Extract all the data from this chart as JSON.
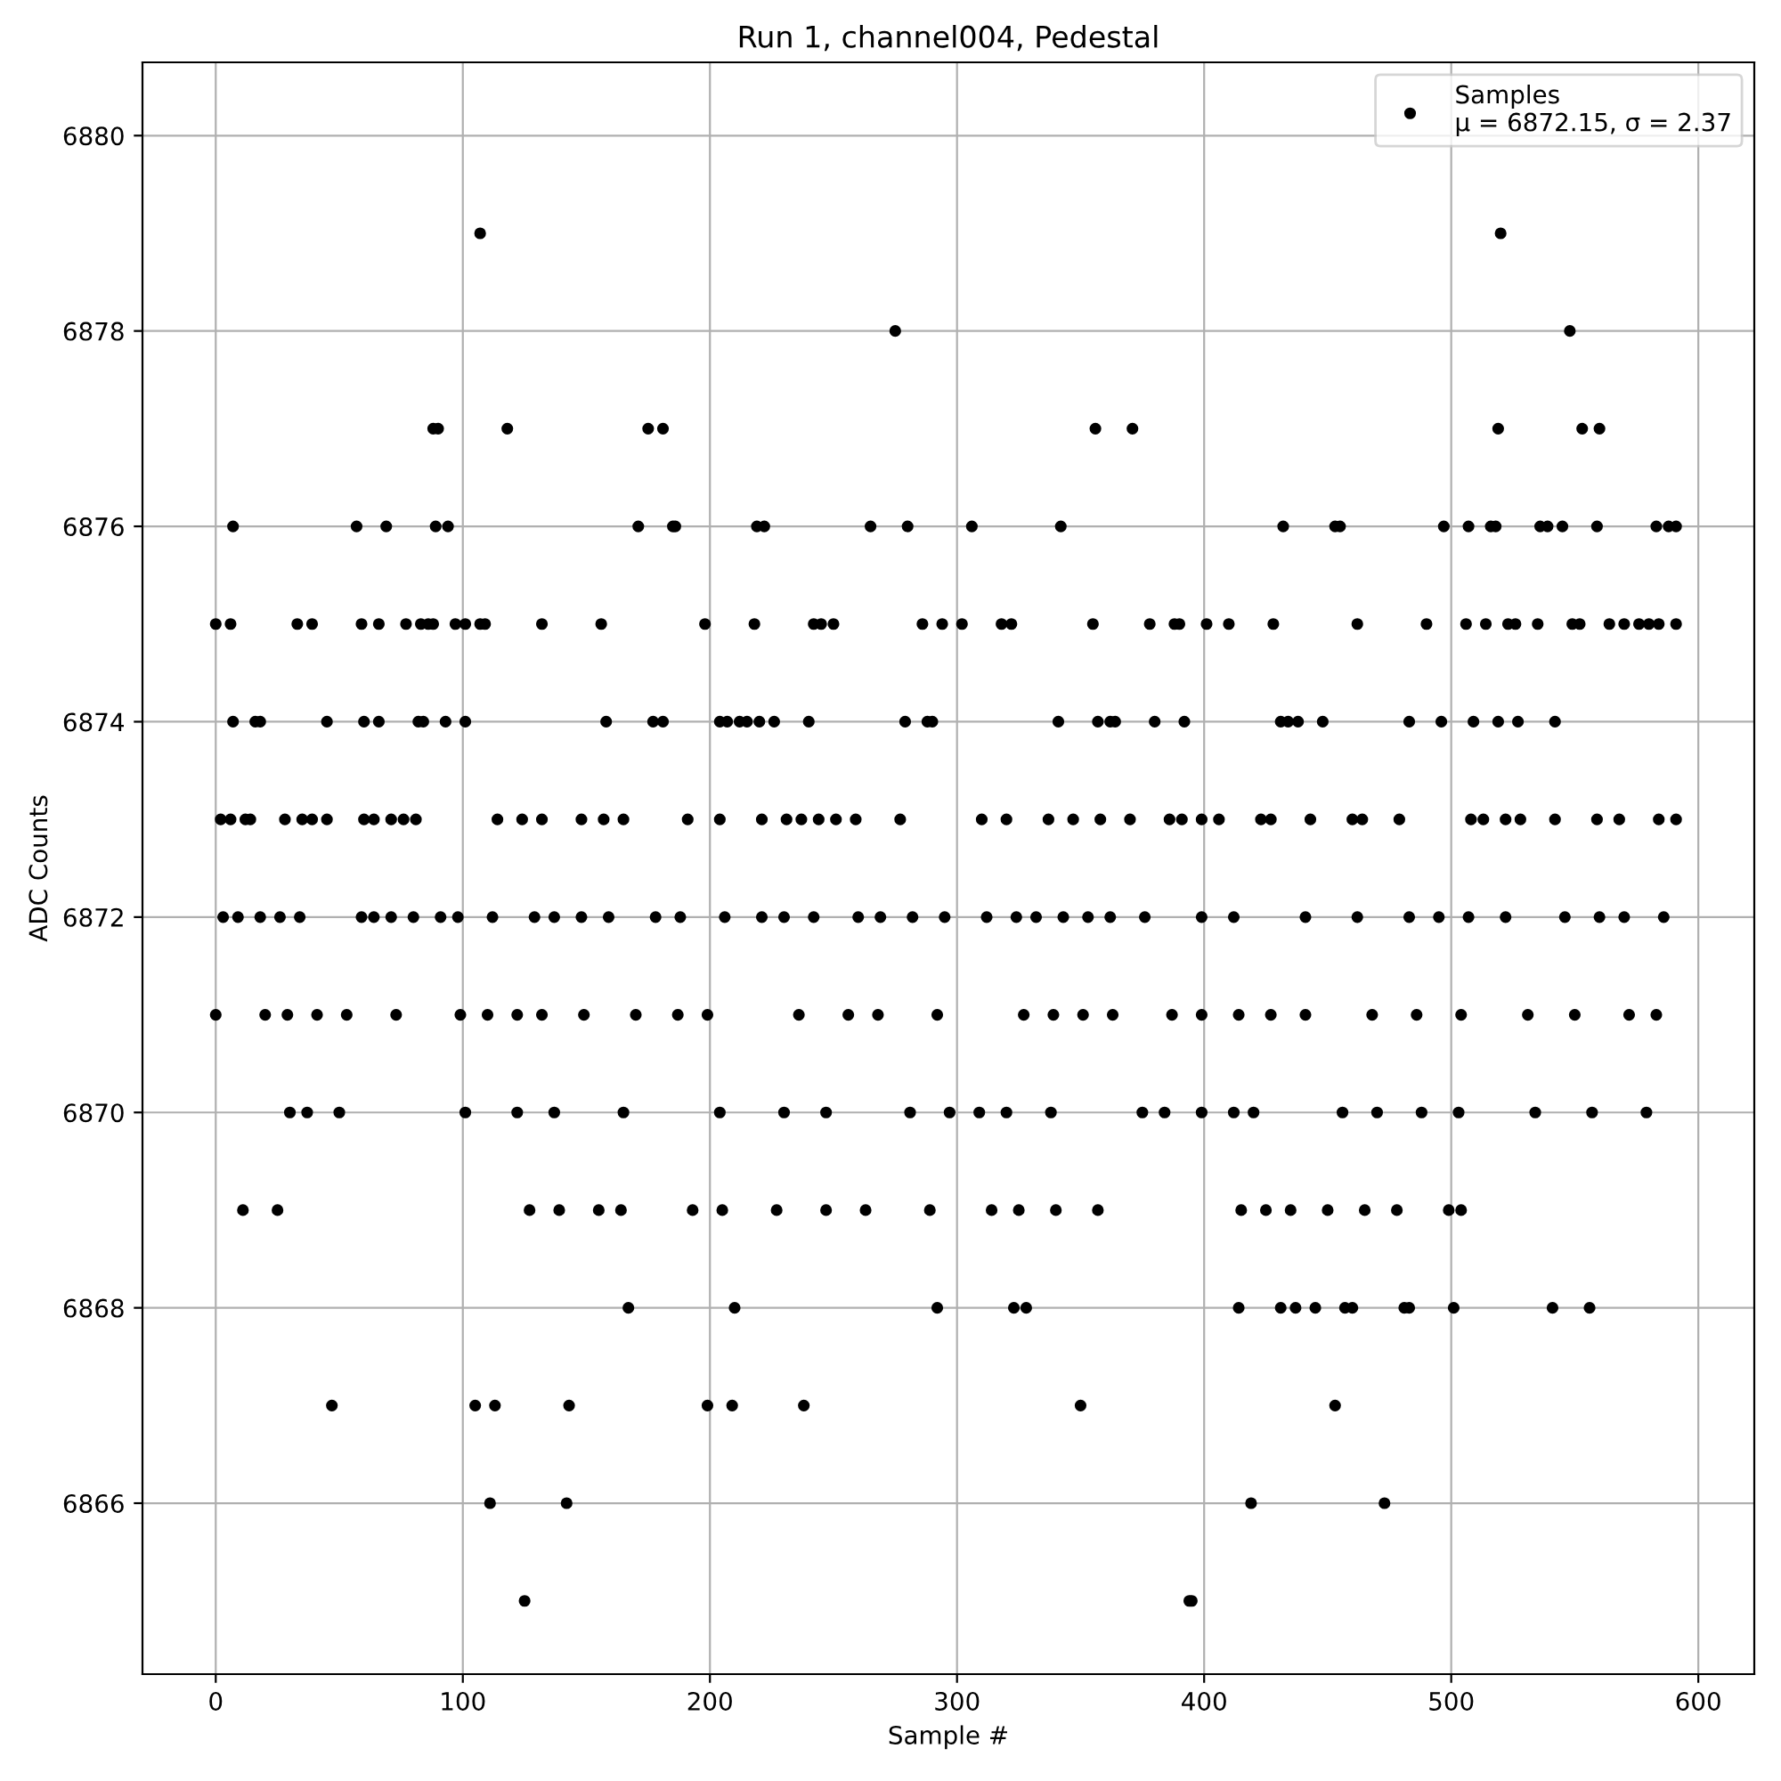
{
  "chart_data": {
    "type": "scatter",
    "title": "Run 1, channel004, Pedestal",
    "xlabel": "Sample #",
    "ylabel": "ADC Counts",
    "xlim": [
      -29.65,
      622.65
    ],
    "ylim": [
      6864.25,
      6880.75
    ],
    "xticks": [
      0,
      100,
      200,
      300,
      400,
      500,
      600
    ],
    "yticks": [
      6866,
      6868,
      6870,
      6872,
      6874,
      6876,
      6878,
      6880
    ],
    "grid": true,
    "legend": "top right",
    "marker": "circle",
    "series": [
      {
        "name": "Samples\nμ = 6872.15, σ = 2.37",
        "color": "#000000",
        "x": [
          107,
          520,
          275,
          548,
          88,
          90,
          118,
          175,
          181,
          356,
          371,
          519,
          553,
          560,
          111,
          142,
          419,
          473,
          125,
          394,
          395,
          47,
          105,
          113,
          143,
          199,
          209,
          238,
          350,
          453,
          167,
          210,
          292,
          323,
          328,
          414,
          431,
          437,
          445,
          457,
          460,
          481,
          483,
          501,
          541,
          556,
          7,
          57,
          69,
          89,
          94,
          171,
          185,
          186,
          219,
          222,
          265,
          280,
          306,
          342,
          432,
          453,
          455,
          497,
          507,
          516,
          518,
          536,
          539,
          545,
          559,
          583,
          588,
          591,
          0,
          6,
          33,
          39,
          59,
          66,
          77,
          83,
          86,
          88,
          97,
          101,
          107,
          109,
          132,
          156,
          198,
          218,
          242,
          245,
          250,
          286,
          294,
          302,
          318,
          322,
          355,
          378,
          388,
          390,
          401,
          410,
          428,
          462,
          490,
          506,
          514,
          523,
          526,
          535,
          549,
          552,
          564,
          570,
          576,
          580,
          584,
          591,
          7,
          16,
          18,
          45,
          60,
          66,
          82,
          84,
          93,
          101,
          158,
          177,
          181,
          204,
          207,
          212,
          215,
          220,
          226,
          240,
          279,
          288,
          290,
          341,
          357,
          362,
          364,
          380,
          392,
          431,
          434,
          438,
          448,
          483,
          496,
          509,
          519,
          527,
          542,
          2,
          6,
          12,
          14,
          28,
          35,
          39,
          45,
          60,
          64,
          71,
          76,
          81,
          114,
          124,
          132,
          148,
          157,
          165,
          191,
          204,
          221,
          231,
          237,
          244,
          251,
          259,
          277,
          310,
          320,
          337,
          347,
          358,
          370,
          386,
          391,
          399,
          406,
          423,
          427,
          443,
          460,
          464,
          479,
          508,
          513,
          522,
          528,
          542,
          559,
          568,
          584,
          591,
          3,
          9,
          18,
          26,
          34,
          59,
          64,
          71,
          80,
          91,
          98,
          112,
          129,
          137,
          148,
          159,
          178,
          188,
          206,
          221,
          230,
          242,
          260,
          269,
          282,
          295,
          312,
          324,
          332,
          343,
          353,
          362,
          376,
          399,
          412,
          441,
          462,
          483,
          495,
          507,
          522,
          546,
          560,
          570,
          586,
          0,
          20,
          29,
          41,
          53,
          73,
          99,
          110,
          122,
          132,
          149,
          170,
          187,
          199,
          236,
          256,
          268,
          292,
          327,
          339,
          351,
          363,
          387,
          399,
          414,
          427,
          441,
          468,
          486,
          504,
          531,
          550,
          572,
          583,
          30,
          37,
          50,
          101,
          122,
          137,
          165,
          204,
          230,
          247,
          281,
          297,
          309,
          320,
          338,
          375,
          384,
          399,
          412,
          420,
          456,
          470,
          488,
          503,
          534,
          557,
          579,
          11,
          25,
          127,
          139,
          155,
          164,
          193,
          205,
          227,
          247,
          263,
          289,
          314,
          325,
          340,
          357,
          415,
          425,
          435,
          450,
          465,
          478,
          499,
          504
        ],
        "values": [
          6879,
          6879,
          6878,
          6878,
          6877,
          6877,
          6877,
          6877,
          6877,
          6877,
          6877,
          6877,
          6877,
          6877,
          6866,
          6866,
          6866,
          6866,
          6865,
          6865,
          6865,
          6867,
          6867,
          6867,
          6867,
          6867,
          6867,
          6867,
          6867,
          6867,
          6868,
          6868,
          6868,
          6868,
          6868,
          6868,
          6868,
          6868,
          6868,
          6868,
          6868,
          6868,
          6868,
          6868,
          6868,
          6868,
          6876,
          6876,
          6876,
          6876,
          6876,
          6876,
          6876,
          6876,
          6876,
          6876,
          6876,
          6876,
          6876,
          6876,
          6876,
          6876,
          6876,
          6876,
          6876,
          6876,
          6876,
          6876,
          6876,
          6876,
          6876,
          6876,
          6876,
          6876,
          6875,
          6875,
          6875,
          6875,
          6875,
          6875,
          6875,
          6875,
          6875,
          6875,
          6875,
          6875,
          6875,
          6875,
          6875,
          6875,
          6875,
          6875,
          6875,
          6875,
          6875,
          6875,
          6875,
          6875,
          6875,
          6875,
          6875,
          6875,
          6875,
          6875,
          6875,
          6875,
          6875,
          6875,
          6875,
          6875,
          6875,
          6875,
          6875,
          6875,
          6875,
          6875,
          6875,
          6875,
          6875,
          6875,
          6875,
          6875,
          6874,
          6874,
          6874,
          6874,
          6874,
          6874,
          6874,
          6874,
          6874,
          6874,
          6874,
          6874,
          6874,
          6874,
          6874,
          6874,
          6874,
          6874,
          6874,
          6874,
          6874,
          6874,
          6874,
          6874,
          6874,
          6874,
          6874,
          6874,
          6874,
          6874,
          6874,
          6874,
          6874,
          6874,
          6874,
          6874,
          6874,
          6874,
          6874,
          6873,
          6873,
          6873,
          6873,
          6873,
          6873,
          6873,
          6873,
          6873,
          6873,
          6873,
          6873,
          6873,
          6873,
          6873,
          6873,
          6873,
          6873,
          6873,
          6873,
          6873,
          6873,
          6873,
          6873,
          6873,
          6873,
          6873,
          6873,
          6873,
          6873,
          6873,
          6873,
          6873,
          6873,
          6873,
          6873,
          6873,
          6873,
          6873,
          6873,
          6873,
          6873,
          6873,
          6873,
          6873,
          6873,
          6873,
          6873,
          6873,
          6873,
          6873,
          6873,
          6873,
          6872,
          6872,
          6872,
          6872,
          6872,
          6872,
          6872,
          6872,
          6872,
          6872,
          6872,
          6872,
          6872,
          6872,
          6872,
          6872,
          6872,
          6872,
          6872,
          6872,
          6872,
          6872,
          6872,
          6872,
          6872,
          6872,
          6872,
          6872,
          6872,
          6872,
          6872,
          6872,
          6872,
          6872,
          6872,
          6872,
          6872,
          6872,
          6872,
          6872,
          6872,
          6872,
          6872,
          6872,
          6872,
          6871,
          6871,
          6871,
          6871,
          6871,
          6871,
          6871,
          6871,
          6871,
          6871,
          6871,
          6871,
          6871,
          6871,
          6871,
          6871,
          6871,
          6871,
          6871,
          6871,
          6871,
          6871,
          6871,
          6871,
          6871,
          6871,
          6871,
          6871,
          6871,
          6871,
          6871,
          6871,
          6871,
          6871,
          6870,
          6870,
          6870,
          6870,
          6870,
          6870,
          6870,
          6870,
          6870,
          6870,
          6870,
          6870,
          6870,
          6870,
          6870,
          6870,
          6870,
          6870,
          6870,
          6870,
          6870,
          6870,
          6870,
          6870,
          6870,
          6870,
          6870,
          6869,
          6869,
          6869,
          6869,
          6869,
          6869,
          6869,
          6869,
          6869,
          6869,
          6869,
          6869,
          6869,
          6869,
          6869,
          6869,
          6869,
          6869,
          6869,
          6869,
          6869,
          6869,
          6869,
          6869
        ]
      }
    ]
  }
}
